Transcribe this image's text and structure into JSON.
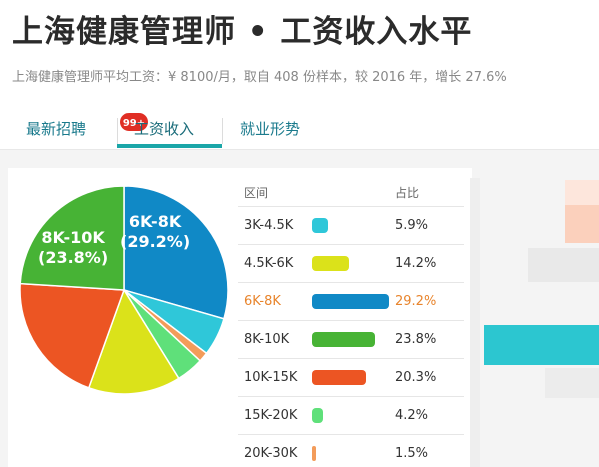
{
  "header": {
    "title": "上海健康管理师 • 工资收入水平",
    "summary": "上海健康管理师平均工资：¥ 8100/月，取自 408 份样本，较 2016 年，增长 27.6%"
  },
  "tabs": [
    {
      "label": "最新招聘",
      "badge": "99+"
    },
    {
      "label": "工资收入",
      "active": true
    },
    {
      "label": "就业形势"
    }
  ],
  "table": {
    "headers": {
      "range": "区间",
      "ratio": "占比"
    },
    "rows": [
      {
        "range": "3K-4.5K",
        "pct": "5.9%",
        "color": "#2fc7d9"
      },
      {
        "range": "4.5K-6K",
        "pct": "14.2%",
        "color": "#dbe21a"
      },
      {
        "range": "6K-8K",
        "pct": "29.2%",
        "color": "#1089c6",
        "highlight": true
      },
      {
        "range": "8K-10K",
        "pct": "23.8%",
        "color": "#47b335"
      },
      {
        "range": "10K-15K",
        "pct": "20.3%",
        "color": "#ec5523"
      },
      {
        "range": "15K-20K",
        "pct": "4.2%",
        "color": "#5fe07a"
      },
      {
        "range": "20K-30K",
        "pct": "1.5%",
        "color": "#f39c5a"
      }
    ]
  },
  "chart_data": {
    "type": "pie",
    "categories": [
      "6K-8K",
      "3K-4.5K",
      "20K-30K",
      "15K-20K",
      "4.5K-6K",
      "10K-15K",
      "8K-10K"
    ],
    "values": [
      29.2,
      5.9,
      1.5,
      4.2,
      14.2,
      20.3,
      23.8
    ],
    "colors": [
      "#1089c6",
      "#2fc7d9",
      "#f39c5a",
      "#5fe07a",
      "#dbe21a",
      "#ec5523",
      "#47b335"
    ],
    "slice_labels": [
      {
        "range": "6K-8K",
        "pct": "(29.2%)"
      },
      {
        "range": "8K-10K",
        "pct": "(23.8%)"
      }
    ]
  }
}
